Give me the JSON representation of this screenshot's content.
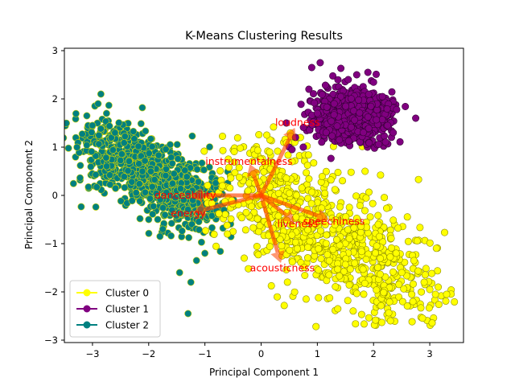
{
  "chart_data": {
    "type": "scatter",
    "title": "K-Means Clustering Results",
    "xlabel": "Principal Component 1",
    "ylabel": "Principal Component 2",
    "xlim": [
      -3.5,
      3.6
    ],
    "ylim": [
      -3.05,
      3.05
    ],
    "xticks": [
      -3,
      -2,
      -1,
      0,
      1,
      2,
      3
    ],
    "yticks": [
      -3,
      -2,
      -1,
      0,
      1,
      2,
      3
    ],
    "grid": false,
    "legend_position": "lower-left",
    "series": [
      {
        "name": "Cluster 0",
        "color": "#ffff00",
        "edge_color": "#8c8c00",
        "cluster": {
          "center": [
            1.4,
            -1.05
          ],
          "spread": [
            0.65,
            0.62
          ],
          "count": 850
        },
        "x": [
          3.3,
          3.1,
          2.7,
          2.9,
          2.5,
          2.3,
          -0.5,
          -0.6,
          -0.3,
          0.1,
          0.15,
          0.7,
          0.6,
          1.3,
          2.8,
          3.0,
          3.15
        ],
        "y": [
          -2.05,
          -2.05,
          -2.2,
          -1.8,
          -1.6,
          -2.6,
          -0.75,
          -0.8,
          -1.3,
          1.25,
          0.9,
          1.2,
          1.1,
          1.25,
          0.33,
          -1.95,
          -1.9
        ]
      },
      {
        "name": "Cluster 1",
        "color": "#800080",
        "edge_color": "#330033",
        "cluster": {
          "center": [
            1.6,
            1.65
          ],
          "spread": [
            0.32,
            0.26
          ],
          "count": 900
        },
        "x": [
          0.9,
          1.05,
          0.85,
          0.45,
          1.0,
          1.3,
          1.55,
          1.7,
          1.9,
          2.25,
          2.35,
          2.75,
          0.75,
          0.5,
          0.55
        ],
        "y": [
          2.65,
          2.75,
          2.2,
          1.5,
          1.7,
          1.9,
          2.4,
          2.5,
          2.55,
          1.45,
          1.3,
          1.6,
          1.0,
          1.0,
          0.95
        ]
      },
      {
        "name": "Cluster 2",
        "color": "#008080",
        "edge_color": "#d4d400",
        "cluster": {
          "center": [
            -2.05,
            0.05
          ],
          "spread": [
            0.55,
            0.42
          ],
          "count": 900
        },
        "x": [
          -2.85,
          -3.1,
          -3.0,
          -2.9,
          -2.75,
          -2.6,
          -1.3,
          -1.25,
          -1.15,
          -1.45,
          -1.0,
          -1.75,
          -1.8,
          -2.0,
          -1.55
        ],
        "y": [
          2.1,
          1.65,
          1.45,
          1.9,
          1.7,
          1.3,
          -2.45,
          -1.8,
          -1.35,
          -1.6,
          -1.2,
          -0.7,
          -0.85,
          -0.5,
          0.45
        ]
      }
    ],
    "loading_vectors": [
      {
        "label": "loudness",
        "x": 0.6,
        "y": 1.4
      },
      {
        "label": "instrumentalness",
        "x": -0.2,
        "y": 0.65
      },
      {
        "label": "danceability",
        "x": -1.25,
        "y": 0.0
      },
      {
        "label": "energy",
        "x": -1.2,
        "y": -0.35
      },
      {
        "label": "speechiness",
        "x": 1.2,
        "y": -0.5
      },
      {
        "label": "liveness",
        "x": 0.6,
        "y": -0.55
      },
      {
        "label": "acousticness",
        "x": 0.35,
        "y": -1.4
      }
    ],
    "vector_label_color": "#ff0000",
    "vector_color": "#ff4400"
  }
}
